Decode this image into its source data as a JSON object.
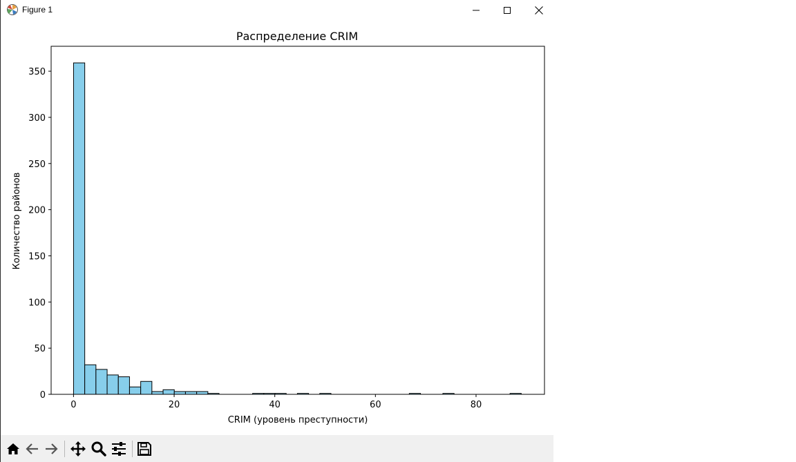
{
  "window": {
    "title": "Figure 1"
  },
  "toolbar": {
    "buttons": [
      "home-icon",
      "back-arrow-icon",
      "forward-arrow-icon",
      "pan-icon",
      "zoom-icon",
      "configure-subplots-icon",
      "save-icon"
    ]
  },
  "colors": {
    "bar_fill": "#87ceeb",
    "bar_edge": "#000000"
  },
  "chart_data": {
    "type": "bar",
    "title": "Распределение CRIM",
    "xlabel": "CRIM (уровень преступности)",
    "ylabel": "Количество районов",
    "xlim": [
      -4.45,
      93.6
    ],
    "ylim": [
      0,
      377
    ],
    "xticks": [
      0,
      20,
      40,
      60,
      80
    ],
    "yticks": [
      0,
      50,
      100,
      150,
      200,
      250,
      300,
      350
    ],
    "grid": false,
    "bin_edges": [
      0.0063,
      2.2306,
      4.4549,
      6.6792,
      8.9035,
      11.1278,
      13.3521,
      15.5764,
      17.8007,
      20.025,
      22.2493,
      24.4736,
      26.6979,
      28.9222,
      31.1465,
      33.3708,
      35.5951,
      37.8194,
      40.0437,
      42.268,
      44.4923,
      46.7166,
      48.9409,
      51.1652,
      53.3895,
      55.6138,
      57.8381,
      60.0624,
      62.2867,
      64.511,
      66.7353,
      68.9596,
      71.1839,
      73.4082,
      75.6325,
      77.8568,
      80.0811,
      82.3054,
      84.5297,
      86.754,
      88.9783
    ],
    "values": [
      359,
      32,
      27,
      21,
      19,
      8,
      14,
      3,
      5,
      3,
      3,
      3,
      1,
      0,
      0,
      0,
      1,
      1,
      1,
      0,
      1,
      0,
      1,
      0,
      0,
      0,
      0,
      0,
      0,
      0,
      1,
      0,
      0,
      1,
      0,
      0,
      0,
      0,
      0,
      1
    ]
  }
}
